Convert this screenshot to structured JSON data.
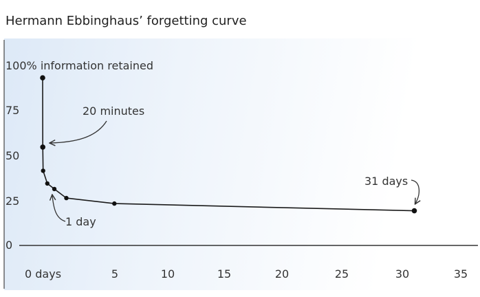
{
  "chart_data": {
    "type": "line",
    "title": "Hermann Ebbinghaus’ forgetting curve",
    "xlabel": "",
    "ylabel": "",
    "x_ticks": [
      {
        "value": 0,
        "label": "0 days"
      },
      {
        "value": 5,
        "label": "5"
      },
      {
        "value": 10,
        "label": "10"
      },
      {
        "value": 15,
        "label": "15"
      },
      {
        "value": 20,
        "label": "20"
      },
      {
        "value": 25,
        "label": "25"
      },
      {
        "value": 30,
        "label": "30"
      },
      {
        "value": 35,
        "label": "35"
      }
    ],
    "y_ticks": [
      {
        "value": 100,
        "label": "100% information retained"
      },
      {
        "value": 75,
        "label": "75"
      },
      {
        "value": 50,
        "label": "50"
      },
      {
        "value": 25,
        "label": "25"
      },
      {
        "value": 0,
        "label": "0"
      }
    ],
    "xlim": [
      0,
      35
    ],
    "ylim": [
      0,
      100
    ],
    "grid": false,
    "series": [
      {
        "points": [
          {
            "x": 0,
            "y": 92
          },
          {
            "x": 0.014,
            "y": 54
          },
          {
            "x": 0.04,
            "y": 41
          },
          {
            "x": 0.4,
            "y": 34
          },
          {
            "x": 1,
            "y": 31
          },
          {
            "x": 2,
            "y": 26
          },
          {
            "x": 6,
            "y": 23
          },
          {
            "x": 31,
            "y": 19
          }
        ]
      }
    ],
    "annotations": [
      {
        "text": "20 minutes",
        "x": 0.014,
        "y": 54
      },
      {
        "text": "1 day",
        "x": 1,
        "y": 31
      },
      {
        "text": "31 days",
        "x": 31,
        "y": 19
      }
    ],
    "colors": {
      "line": "#1a1a1a",
      "marker": "#111111",
      "axis": "#333333",
      "background_gradient_start": "#dde9f7"
    }
  }
}
